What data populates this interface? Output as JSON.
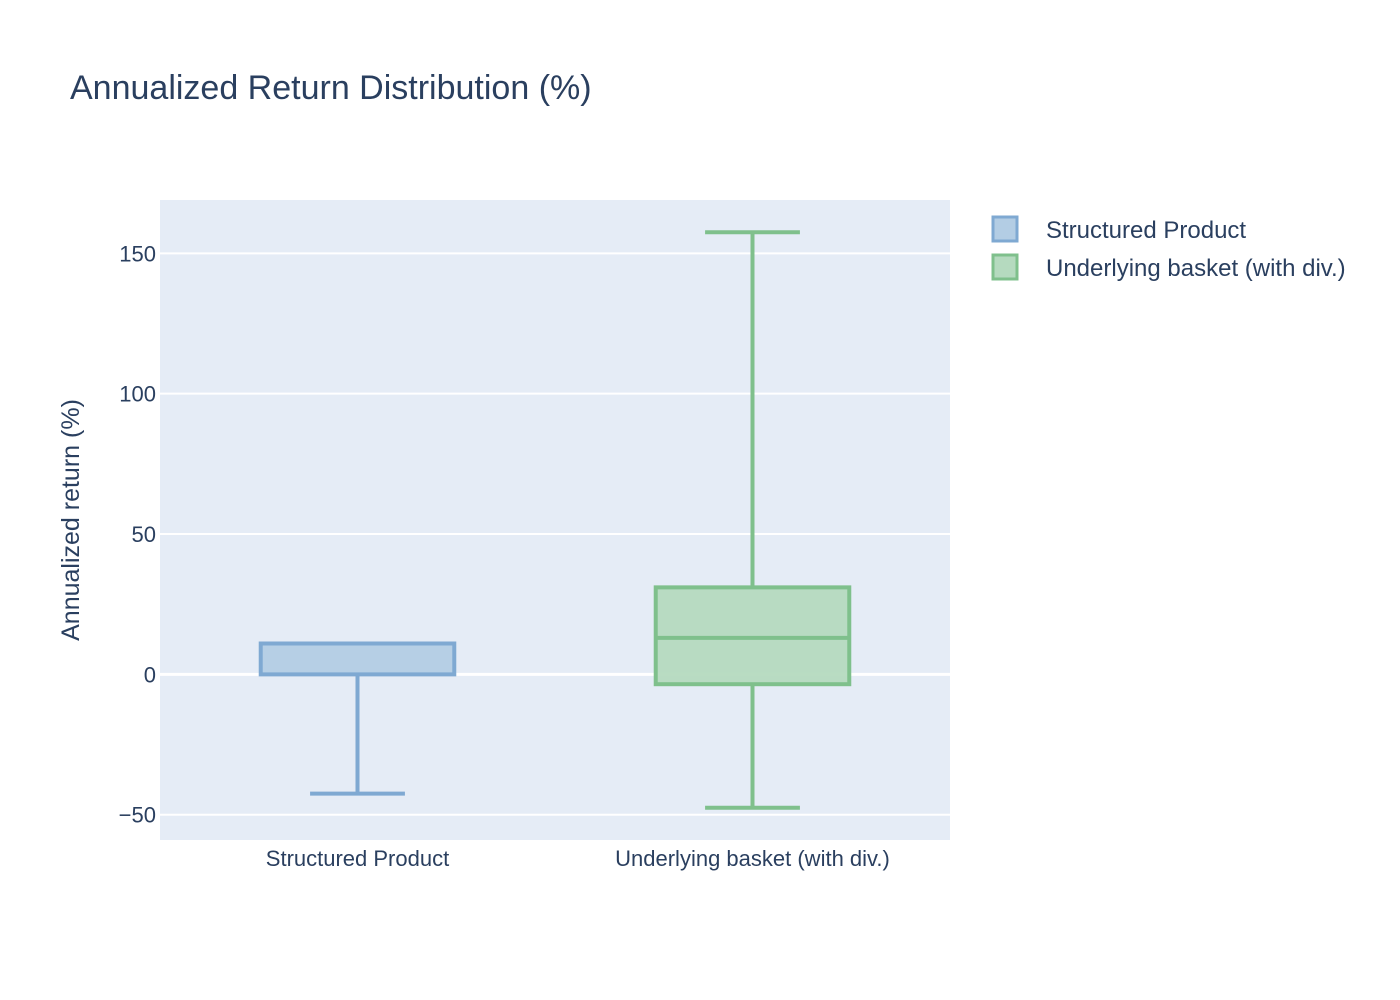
{
  "chart_data": {
    "type": "box",
    "title": "Annualized Return Distribution (%)",
    "xlabel": "",
    "ylabel": "Annualized return (%)",
    "categories": [
      "Structured Product",
      "Underlying basket (with div.)"
    ],
    "ylim": [
      -59,
      169
    ],
    "yticks": [
      -50,
      0,
      50,
      100,
      150
    ],
    "ytick_labels": [
      "−50",
      "0",
      "50",
      "100",
      "150"
    ],
    "grid": true,
    "legend_position": "top-right",
    "series": [
      {
        "name": "Structured Product",
        "color": "#7fa9d2",
        "fill": "#b3cde4",
        "min": -42.5,
        "q1": 0,
        "median": 11,
        "q3": 11,
        "max": 11
      },
      {
        "name": "Underlying basket (with div.)",
        "color": "#7fc08c",
        "fill": "#b5dabf",
        "min": -47.5,
        "q1": -3.5,
        "median": 13,
        "q3": 31,
        "max": 157.5
      }
    ]
  }
}
